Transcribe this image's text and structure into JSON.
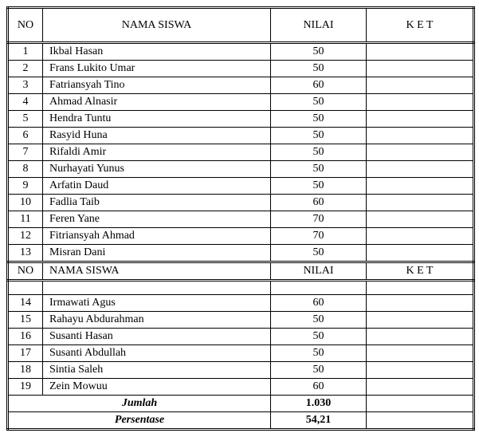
{
  "table": {
    "columns": {
      "no": "NO",
      "name": "NAMA SISWA",
      "nilai": "NILAI",
      "ket": "K E T"
    },
    "midHeader": {
      "no": "NO",
      "name": "NAMA SISWA",
      "nilai": "NILAI",
      "ket": "K E T"
    },
    "rows1": [
      {
        "no": "1",
        "name": "Ikbal Hasan",
        "nilai": "50",
        "ket": ""
      },
      {
        "no": "2",
        "name": "Frans Lukito Umar",
        "nilai": "50",
        "ket": ""
      },
      {
        "no": "3",
        "name": "Fatriansyah Tino",
        "nilai": "60",
        "ket": ""
      },
      {
        "no": "4",
        "name": "Ahmad Alnasir",
        "nilai": "50",
        "ket": ""
      },
      {
        "no": "5",
        "name": "Hendra Tuntu",
        "nilai": "50",
        "ket": ""
      },
      {
        "no": "6",
        "name": "Rasyid Huna",
        "nilai": "50",
        "ket": ""
      },
      {
        "no": "7",
        "name": "Rifaldi Amir",
        "nilai": "50",
        "ket": ""
      },
      {
        "no": "8",
        "name": "Nurhayati Yunus",
        "nilai": "50",
        "ket": ""
      },
      {
        "no": "9",
        "name": "Arfatin Daud",
        "nilai": "50",
        "ket": ""
      },
      {
        "no": "10",
        "name": "Fadlia Taib",
        "nilai": "60",
        "ket": ""
      },
      {
        "no": "11",
        "name": "Feren Yane",
        "nilai": "70",
        "ket": ""
      },
      {
        "no": "12",
        "name": "Fitriansyah Ahmad",
        "nilai": "70",
        "ket": ""
      },
      {
        "no": "13",
        "name": "Misran Dani",
        "nilai": "50",
        "ket": ""
      }
    ],
    "rows2": [
      {
        "no": "14",
        "name": "Irmawati Agus",
        "nilai": "60",
        "ket": ""
      },
      {
        "no": "15",
        "name": "Rahayu Abdurahman",
        "nilai": "50",
        "ket": ""
      },
      {
        "no": "16",
        "name": "Susanti Hasan",
        "nilai": "50",
        "ket": ""
      },
      {
        "no": "17",
        "name": "Susanti Abdullah",
        "nilai": "50",
        "ket": ""
      },
      {
        "no": "18",
        "name": "Sintia Saleh",
        "nilai": "50",
        "ket": ""
      },
      {
        "no": "19",
        "name": "Zein Mowuu",
        "nilai": "60",
        "ket": ""
      }
    ],
    "summary": {
      "jumlahLabel": "Jumlah",
      "jumlahValue": "1.030",
      "persentaseLabel": "Persentase",
      "persentaseValue": "54,21"
    }
  }
}
